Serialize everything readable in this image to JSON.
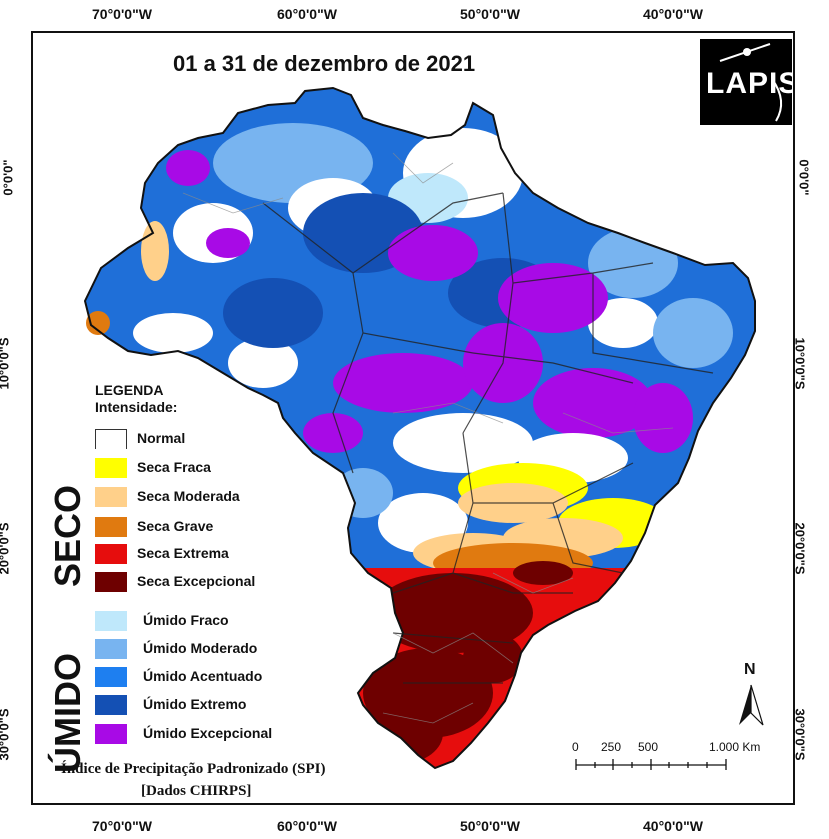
{
  "map": {
    "title": "01 a 31 de dezembro de 2021",
    "logo_text": "LAPIS",
    "axes": {
      "top": [
        "70°0'0\"W",
        "60°0'0\"W",
        "50°0'0\"W",
        "40°0'0\"W"
      ],
      "bottom": [
        "70°0'0\"W",
        "60°0'0\"W",
        "50°0'0\"W",
        "40°0'0\"W"
      ],
      "left": [
        "0°0'0\"",
        "10°0'0\"S",
        "20°0'0\"S",
        "30°0'0\"S"
      ],
      "right": [
        "0°0'0\"",
        "10°0'0\"S",
        "20°0'0\"S",
        "30°0'0\"S"
      ]
    },
    "legend": {
      "title_line1": "LEGENDA",
      "title_line2": "Intensidade:",
      "group_dry": "SECO",
      "group_wet": "ÚMIDO",
      "items": [
        {
          "label": "Normal",
          "color": "#ffffff"
        },
        {
          "label": "Seca Fraca",
          "color": "#ffff00"
        },
        {
          "label": "Seca Moderada",
          "color": "#ffd08a"
        },
        {
          "label": "Seca Grave",
          "color": "#e07a10"
        },
        {
          "label": "Seca Extrema",
          "color": "#e60d0d"
        },
        {
          "label": "Seca Excepcional",
          "color": "#6e0000"
        },
        {
          "label": "Úmido Fraco",
          "color": "#bfe8fb"
        },
        {
          "label": "Úmido Moderado",
          "color": "#78b4f0"
        },
        {
          "label": "Úmido Acentuado",
          "color": "#1e7ff0"
        },
        {
          "label": "Úmido Extremo",
          "color": "#1450b4"
        },
        {
          "label": "Úmido Excepcional",
          "color": "#a80ae6"
        }
      ]
    },
    "north_label": "N",
    "scale_labels": [
      "0",
      "250",
      "500",
      "1.000 Km"
    ],
    "footer_line1": "Índice de Precipitação Padronizado (SPI)",
    "footer_line2": "[Dados CHIRPS]"
  }
}
